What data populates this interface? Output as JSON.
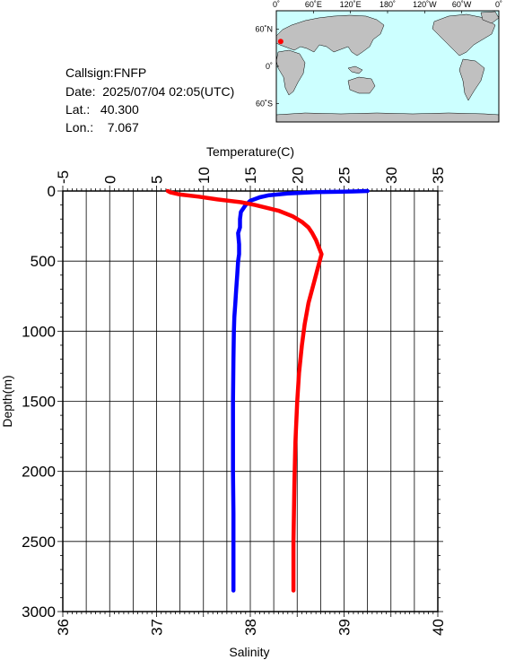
{
  "station": {
    "callsign_text": "Callsign:FNFP",
    "date_text": "Date:  2025/07/04 02:05(UTC)",
    "lat_text": "Lat.:   40.300",
    "lon_text": "Lon.:    7.067",
    "lat": 40.3,
    "lon": 7.067
  },
  "map": {
    "top_ticks": [
      "0˚",
      "60˚E",
      "120˚E",
      "180˚",
      "120˚W",
      "60˚W",
      "0˚"
    ],
    "left_ticks": [
      "60˚N",
      "0˚",
      "60˚S"
    ],
    "ocean_color": "#ccffff",
    "land_color": "#c0c0c0",
    "marker_color": "#ff0000"
  },
  "chart_data": {
    "type": "line",
    "y_axis": {
      "label": "Depth(m)",
      "range": [
        0,
        3000
      ],
      "reversed": true,
      "ticks": [
        "0",
        "500",
        "1000",
        "1500",
        "2000",
        "2500",
        "3000"
      ]
    },
    "top_axis": {
      "label": "Temperature(C)",
      "range": [
        -5,
        35
      ],
      "ticks": [
        "-5",
        "0",
        "5",
        "10",
        "15",
        "20",
        "25",
        "30",
        "35"
      ]
    },
    "bottom_axis": {
      "label": "Salinity",
      "range": [
        36,
        40
      ],
      "ticks": [
        "36",
        "37",
        "38",
        "39",
        "40"
      ]
    },
    "grid": true,
    "series": [
      {
        "quantity": "Temperature",
        "axis": "top",
        "color": "#0000ff",
        "points": [
          [
            27.5,
            0
          ],
          [
            26.0,
            3
          ],
          [
            22.0,
            8
          ],
          [
            19.0,
            18
          ],
          [
            17.0,
            30
          ],
          [
            16.0,
            45
          ],
          [
            15.0,
            70
          ],
          [
            14.5,
            100
          ],
          [
            14.0,
            150
          ],
          [
            13.9,
            200
          ],
          [
            13.9,
            260
          ],
          [
            13.7,
            300
          ],
          [
            13.8,
            380
          ],
          [
            13.8,
            450
          ],
          [
            13.7,
            500
          ],
          [
            13.6,
            600
          ],
          [
            13.5,
            700
          ],
          [
            13.4,
            800
          ],
          [
            13.3,
            900
          ],
          [
            13.25,
            1000
          ],
          [
            13.2,
            1200
          ],
          [
            13.15,
            1500
          ],
          [
            13.15,
            1800
          ],
          [
            13.15,
            2000
          ],
          [
            13.2,
            2300
          ],
          [
            13.2,
            2600
          ],
          [
            13.2,
            2850
          ]
        ]
      },
      {
        "quantity": "Salinity",
        "axis": "bottom",
        "color": "#ff0000",
        "points": [
          [
            37.12,
            0
          ],
          [
            37.15,
            10
          ],
          [
            37.25,
            25
          ],
          [
            37.45,
            40
          ],
          [
            37.65,
            60
          ],
          [
            37.9,
            80
          ],
          [
            38.05,
            100
          ],
          [
            38.3,
            140
          ],
          [
            38.45,
            180
          ],
          [
            38.55,
            220
          ],
          [
            38.62,
            260
          ],
          [
            38.66,
            300
          ],
          [
            38.7,
            350
          ],
          [
            38.73,
            400
          ],
          [
            38.76,
            450
          ],
          [
            38.74,
            500
          ],
          [
            38.72,
            550
          ],
          [
            38.68,
            650
          ],
          [
            38.62,
            800
          ],
          [
            38.58,
            950
          ],
          [
            38.55,
            1100
          ],
          [
            38.52,
            1300
          ],
          [
            38.5,
            1500
          ],
          [
            38.48,
            1800
          ],
          [
            38.47,
            2100
          ],
          [
            38.46,
            2500
          ],
          [
            38.46,
            2850
          ]
        ]
      }
    ]
  }
}
